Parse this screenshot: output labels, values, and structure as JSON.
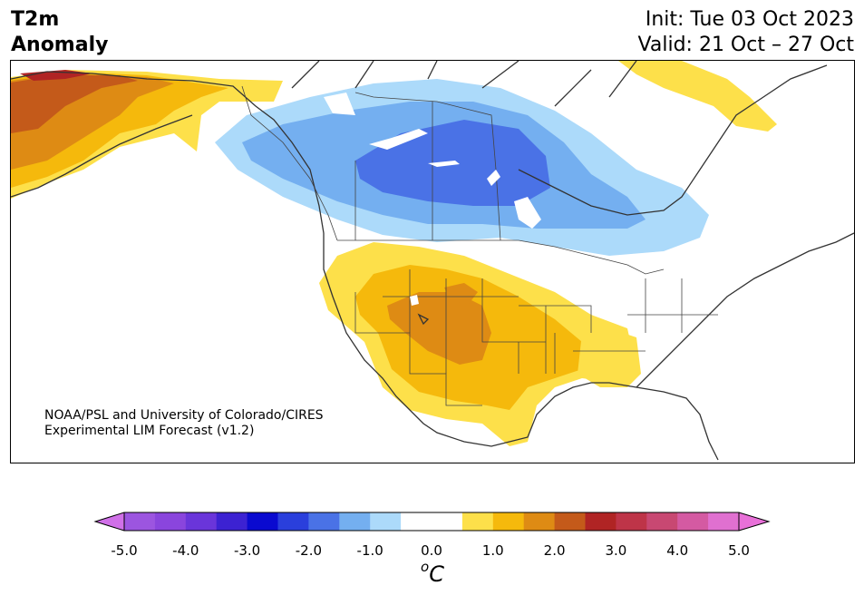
{
  "title": {
    "line1": "T2m",
    "line2": "Anomaly",
    "init": "Init: Tue 03 Oct 2023",
    "valid": "Valid: 21 Oct – 27 Oct"
  },
  "credit": {
    "line1": "NOAA/PSL and University of Colorado/CIRES",
    "line2": "Experimental LIM Forecast (v1.2)"
  },
  "colorbar": {
    "unit_base": "C",
    "unit_sup": "o",
    "ticks": [
      "-5.0",
      "-4.0",
      "-3.0",
      "-2.0",
      "-1.0",
      "0.0",
      "1.0",
      "2.0",
      "3.0",
      "4.0",
      "5.0"
    ],
    "bins": [
      {
        "from": -5.0,
        "to": -4.5,
        "color": "#9c55e0"
      },
      {
        "from": -4.5,
        "to": -4.0,
        "color": "#8a45dd"
      },
      {
        "from": -4.0,
        "to": -3.5,
        "color": "#6a35da"
      },
      {
        "from": -3.5,
        "to": -3.0,
        "color": "#3c22d2"
      },
      {
        "from": -3.0,
        "to": -2.5,
        "color": "#0a0ad0"
      },
      {
        "from": -2.5,
        "to": -2.0,
        "color": "#2a3fdc"
      },
      {
        "from": -2.0,
        "to": -1.5,
        "color": "#4a72e6"
      },
      {
        "from": -1.5,
        "to": -1.0,
        "color": "#74aff0"
      },
      {
        "from": -1.0,
        "to": -0.5,
        "color": "#acdafa"
      },
      {
        "from": -0.5,
        "to": 0.5,
        "color": "#ffffff"
      },
      {
        "from": 0.5,
        "to": 1.0,
        "color": "#fde04a"
      },
      {
        "from": 1.0,
        "to": 1.5,
        "color": "#f5b90c"
      },
      {
        "from": 1.5,
        "to": 2.0,
        "color": "#de8b14"
      },
      {
        "from": 2.0,
        "to": 2.5,
        "color": "#c45a1a"
      },
      {
        "from": 2.5,
        "to": 3.0,
        "color": "#b02424"
      },
      {
        "from": 3.0,
        "to": 3.5,
        "color": "#be3448"
      },
      {
        "from": 3.5,
        "to": 4.0,
        "color": "#c84872"
      },
      {
        "from": 4.0,
        "to": 4.5,
        "color": "#d45aa2"
      },
      {
        "from": 4.5,
        "to": 5.0,
        "color": "#e070d0"
      }
    ],
    "extend_low_color": "#d070e8",
    "extend_high_color": "#e870d8"
  },
  "anomaly_colors": {
    "alaska_warm_1": "#fde04a",
    "alaska_warm_2": "#f5b90c",
    "alaska_warm_3": "#de8b14",
    "alaska_warm_4": "#c45a1a",
    "alaska_warm_5": "#b02424",
    "canada_cold_1": "#acdafa",
    "canada_cold_2": "#74aff0",
    "canada_cold_3": "#4a72e6",
    "sw_warm_1": "#fde04a",
    "sw_warm_2": "#f5b90c",
    "sw_warm_3": "#de8b14",
    "southeast_warm": "#fde04a",
    "greenland_warm": "#fde04a"
  }
}
